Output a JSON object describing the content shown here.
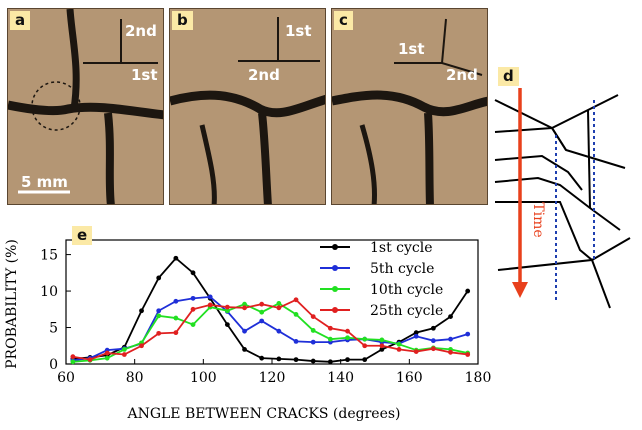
{
  "panels": {
    "a": {
      "letter": "a",
      "label_top": "2nd",
      "label_bottom": "1st",
      "scale": "5 mm"
    },
    "b": {
      "letter": "b",
      "label_top": "1st",
      "label_bottom": "2nd"
    },
    "c": {
      "letter": "c",
      "label_top": "1st",
      "label_bottom": "2nd"
    },
    "d": {
      "letter": "d",
      "arrow_label": "Time"
    },
    "e": {
      "letter": "e"
    }
  },
  "colors": {
    "mud": "#b49674",
    "crack": "#1c1610",
    "time_arrow": "#e8401c",
    "dotted_line": "#1f3fb0"
  },
  "chart_data": {
    "type": "line",
    "xlabel": "ANGLE BETWEEN CRACKS (degrees)",
    "ylabel": "PROBABILITY (%)",
    "xlim": [
      60,
      180
    ],
    "ylim": [
      0,
      17
    ],
    "xticks": [
      60,
      80,
      100,
      120,
      140,
      160,
      180
    ],
    "yticks": [
      0,
      5,
      10,
      15
    ],
    "legend_position": "top-right",
    "series": [
      {
        "name": "1st cycle",
        "color": "#000000",
        "x": [
          62,
          67,
          72,
          77,
          82,
          87,
          92,
          97,
          102,
          107,
          112,
          117,
          122,
          127,
          132,
          137,
          142,
          147,
          152,
          157,
          162,
          167,
          172,
          177
        ],
        "y": [
          0.7,
          0.9,
          1.2,
          2.3,
          7.3,
          11.8,
          14.5,
          12.5,
          9.0,
          5.4,
          2.0,
          0.8,
          0.7,
          0.6,
          0.4,
          0.3,
          0.6,
          0.6,
          2.0,
          3.0,
          4.3,
          4.9,
          6.5,
          10.0
        ]
      },
      {
        "name": "5th cycle",
        "color": "#1f2fd8",
        "x": [
          62,
          67,
          72,
          77,
          82,
          87,
          92,
          97,
          102,
          107,
          112,
          117,
          122,
          127,
          132,
          137,
          142,
          147,
          152,
          157,
          162,
          167,
          172,
          177
        ],
        "y": [
          0.5,
          0.8,
          1.9,
          2.1,
          2.8,
          7.3,
          8.6,
          9.0,
          9.2,
          7.2,
          4.5,
          5.9,
          4.5,
          3.1,
          3.0,
          3.0,
          3.3,
          3.4,
          3.0,
          2.8,
          3.8,
          3.2,
          3.4,
          4.1
        ]
      },
      {
        "name": "10th cycle",
        "color": "#22e022",
        "x": [
          62,
          67,
          72,
          77,
          82,
          87,
          92,
          97,
          102,
          107,
          112,
          117,
          122,
          127,
          132,
          137,
          142,
          147,
          152,
          157,
          162,
          167,
          172,
          177
        ],
        "y": [
          0.3,
          0.5,
          0.8,
          2.0,
          2.9,
          6.6,
          6.3,
          5.4,
          7.8,
          7.3,
          8.2,
          7.1,
          8.3,
          6.8,
          4.6,
          3.4,
          3.6,
          3.4,
          3.3,
          2.7,
          1.9,
          2.2,
          2.0,
          1.5
        ]
      },
      {
        "name": "25th cycle",
        "color": "#e02020",
        "x": [
          62,
          67,
          72,
          77,
          82,
          87,
          92,
          97,
          102,
          107,
          112,
          117,
          122,
          127,
          132,
          137,
          142,
          147,
          152,
          157,
          162,
          167,
          172,
          177
        ],
        "y": [
          1.0,
          0.6,
          1.5,
          1.3,
          2.5,
          4.2,
          4.3,
          7.5,
          8.1,
          7.8,
          7.7,
          8.2,
          7.7,
          8.8,
          6.5,
          4.9,
          4.5,
          2.5,
          2.5,
          2.0,
          1.7,
          2.1,
          1.6,
          1.3
        ]
      }
    ]
  }
}
